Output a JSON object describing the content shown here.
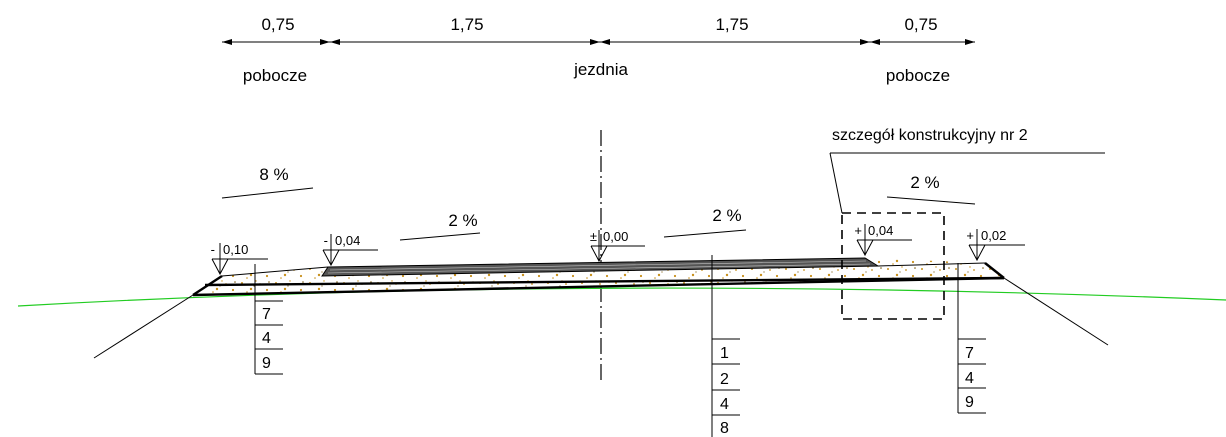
{
  "dimensions": {
    "seg1": "0,75",
    "seg2": "1,75",
    "seg3": "1,75",
    "seg4": "0,75"
  },
  "zones": {
    "left": "pobocze",
    "center": "jezdnia",
    "right": "pobocze"
  },
  "slopes": {
    "left_shoulder": "8 %",
    "left_lane": "2 %",
    "right_lane": "2 %",
    "right_shoulder": "2 %"
  },
  "elevations": {
    "left_edge": "0,10",
    "left_edge_sign": "-",
    "left_lane_edge": "0,04",
    "left_lane_edge_sign": "-",
    "axis": "0,00",
    "axis_sign": "±",
    "right_lane_edge": "0,04",
    "right_lane_edge_sign": "+",
    "right_edge": "0,02",
    "right_edge_sign": "+"
  },
  "detail_label": "szczegół konstrukcyjny nr 2",
  "layer_tables": {
    "left": [
      "7",
      "4",
      "9"
    ],
    "center": [
      "1",
      "2",
      "4",
      "8"
    ],
    "right": [
      "7",
      "4",
      "9"
    ]
  },
  "colors": {
    "lines": "#000000",
    "terrain": "#22cc22",
    "aggregate": "#c8901c"
  }
}
